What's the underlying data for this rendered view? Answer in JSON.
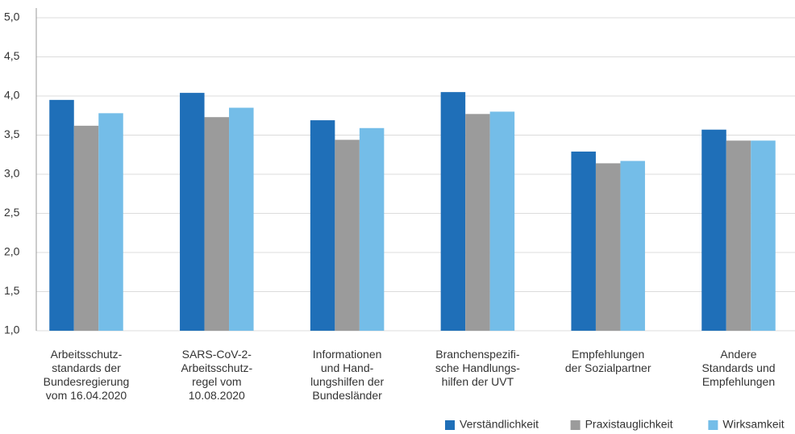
{
  "chart_data": {
    "type": "bar",
    "categories": [
      [
        "Arbeitsschutz-",
        "standards der",
        "Bundesregierung",
        "vom 16.04.2020"
      ],
      [
        "SARS-CoV-2-",
        "Arbeitsschutz-",
        "regel vom",
        "10.08.2020"
      ],
      [
        "Informationen",
        "und Hand-",
        "lungshilfen der",
        "Bundesländer"
      ],
      [
        "Branchenspezifi-",
        "sche Handlungs-",
        "hilfen der UVT"
      ],
      [
        "Empfehlungen",
        "der Sozialpartner"
      ],
      [
        "Andere",
        "Standards und",
        "Empfehlungen"
      ]
    ],
    "series": [
      {
        "name": "Verständlichkeit",
        "color": "#1f6fb8",
        "values": [
          3.95,
          4.04,
          3.69,
          4.05,
          3.29,
          3.57
        ]
      },
      {
        "name": "Praxistauglichkeit",
        "color": "#9b9b9b",
        "values": [
          3.62,
          3.73,
          3.44,
          3.77,
          3.14,
          3.43
        ]
      },
      {
        "name": "Wirksamkeit",
        "color": "#74bde8",
        "values": [
          3.78,
          3.85,
          3.59,
          3.8,
          3.17,
          3.43
        ]
      }
    ],
    "ylim": [
      1,
      5
    ],
    "yticks": [
      {
        "value": 1,
        "label": "1,0"
      },
      {
        "value": 1.5,
        "label": "1,5"
      },
      {
        "value": 2,
        "label": "2,0"
      },
      {
        "value": 2.5,
        "label": "2,5"
      },
      {
        "value": 3,
        "label": "3,0"
      },
      {
        "value": 3.5,
        "label": "3,5"
      },
      {
        "value": 4,
        "label": "4,0"
      },
      {
        "value": 4.5,
        "label": "4,5"
      },
      {
        "value": 5,
        "label": "5,0"
      }
    ],
    "grid": true,
    "legend": "bottom-right"
  }
}
